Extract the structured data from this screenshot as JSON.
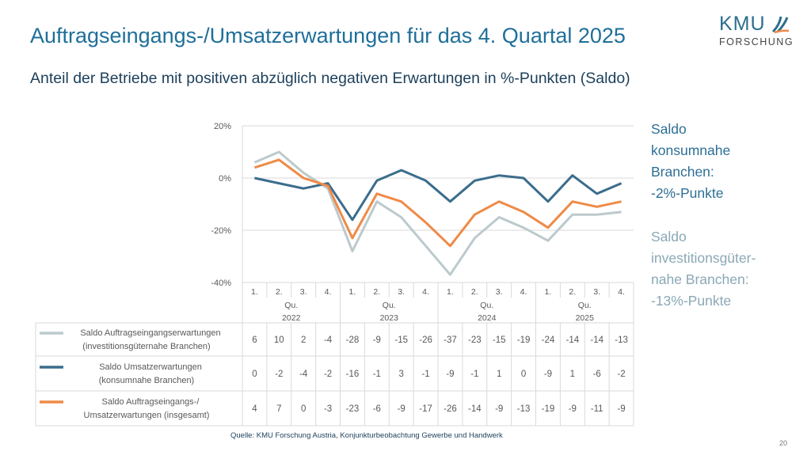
{
  "title": "Auftragseingangs-/Umsatzerwartungen für das 4. Quartal 2025",
  "subtitle": "Anteil der Betriebe mit positiven abzüglich negativen Erwartungen in %-Punkten (Saldo)",
  "logo": {
    "line1": "KMU",
    "line2": "FORSCHUNG"
  },
  "notes": [
    [
      "Saldo",
      "konsumnahe",
      "Branchen:",
      "-2%-Punkte"
    ],
    [
      "Saldo",
      "investitionsgüter-",
      "nahe Branchen:",
      "-13%-Punkte"
    ]
  ],
  "source": "Quelle: KMU Forschung Austria, Konjunkturbeobachtung Gewerbe und Handwerk",
  "page_number": "20",
  "chart_data": {
    "type": "line",
    "ylim": [
      -40,
      20
    ],
    "yticks": [
      20,
      0,
      -20,
      -40
    ],
    "ytick_labels": [
      "20%",
      "0%",
      "-20%",
      "-40%"
    ],
    "grid": true,
    "quarter_labels": [
      "1.",
      "2.",
      "3.",
      "4."
    ],
    "quarter_prefix": "Qu.",
    "years": [
      "2022",
      "2023",
      "2024",
      "2025"
    ],
    "series": [
      {
        "name": "Saldo Auftragseingangserwartungen (investitionsgüternahe Branchen)",
        "label_lines": [
          "Saldo Auftragseingangserwartungen",
          "(investitionsgüternahe Branchen)"
        ],
        "color": "#bccacd",
        "values": [
          6,
          10,
          2,
          -4,
          -28,
          -9,
          -15,
          -26,
          -37,
          -23,
          -15,
          -19,
          -24,
          -14,
          -14,
          -13
        ]
      },
      {
        "name": "Saldo Umsatzerwartungen (konsumnahe Branchen)",
        "label_lines": [
          "Saldo Umsatzerwartungen",
          "(konsumnahe Branchen)"
        ],
        "color": "#3b6d8c",
        "values": [
          0,
          -2,
          -4,
          -2,
          -16,
          -1,
          3,
          -1,
          -9,
          -1,
          1,
          0,
          -9,
          1,
          -6,
          -2
        ]
      },
      {
        "name": "Saldo Auftragseingangs-/Umsatzerwartungen (insgesamt)",
        "label_lines": [
          "Saldo Auftragseingangs-/",
          "Umsatzerwartungen (insgesamt)"
        ],
        "color": "#ef8a47",
        "values": [
          4,
          7,
          0,
          -3,
          -23,
          -6,
          -9,
          -17,
          -26,
          -14,
          -9,
          -13,
          -19,
          -9,
          -11,
          -9
        ]
      }
    ]
  }
}
